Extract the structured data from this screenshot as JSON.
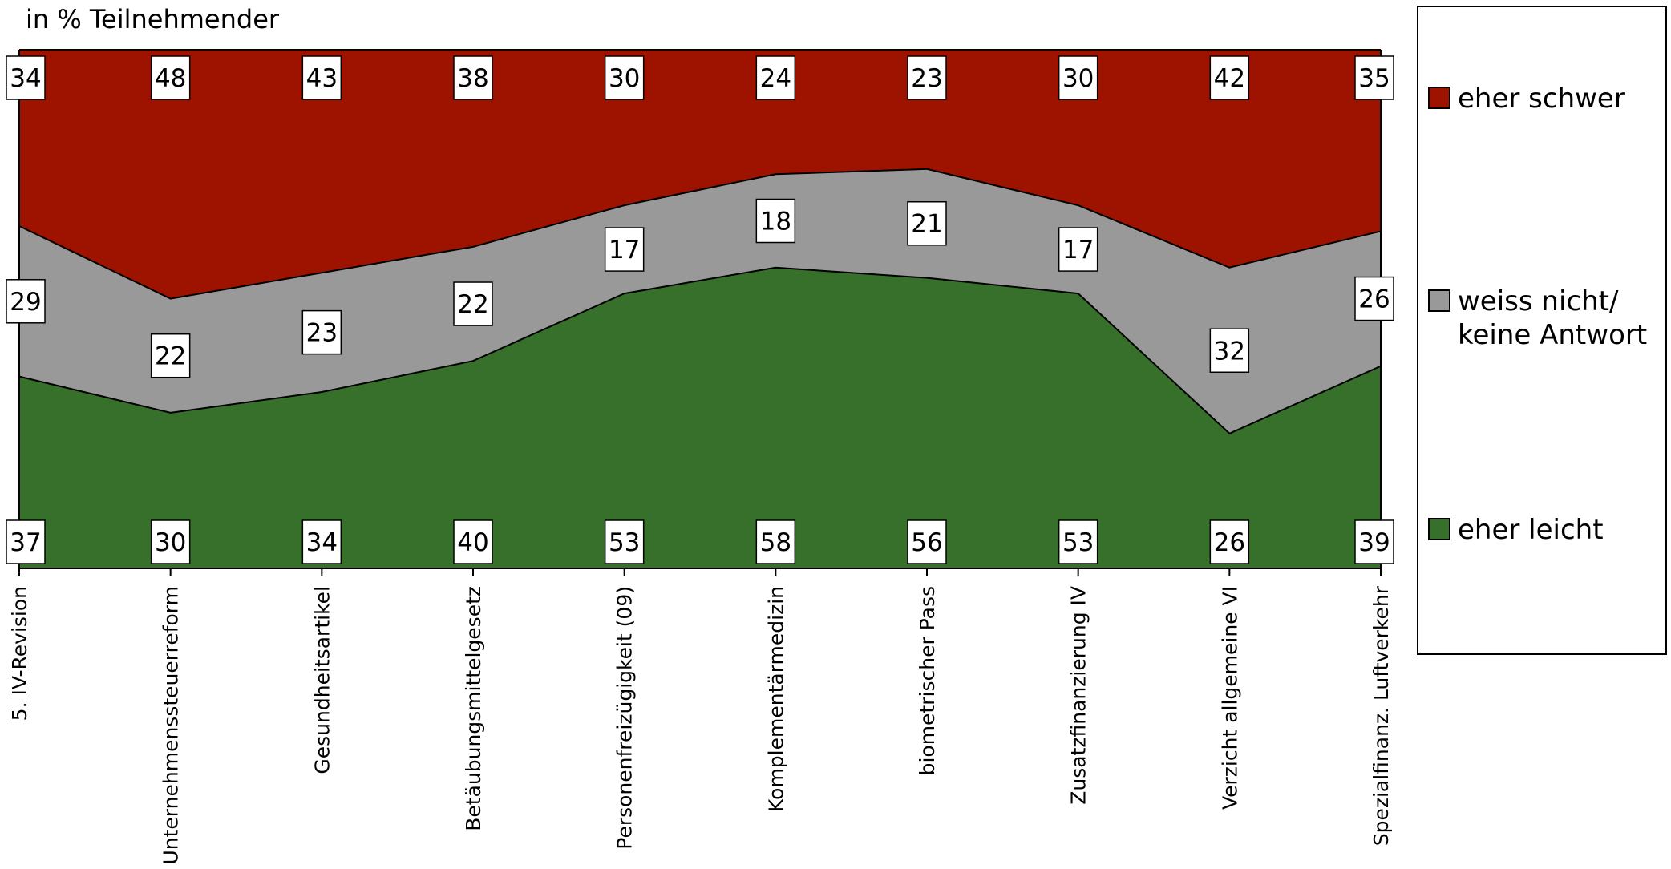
{
  "chart_data": {
    "type": "area",
    "stacked": "percent",
    "ylabel": "in % Teilnehmender",
    "categories": [
      "5. IV-Revision",
      "Unternehmenssteuerreform",
      "Gesundheitsartikel",
      "Betäubungsmittelgesetz",
      "Personenfreizügigkeit (09)",
      "Komplementärmedizin",
      "biometrischer Pass",
      "Zusatzfinanzierung IV",
      "Verzicht allgemeine VI",
      "Spezialfinanz. Luftverkehr"
    ],
    "series": [
      {
        "name": "eher leicht",
        "color": "#36702a",
        "values": [
          37,
          30,
          34,
          40,
          53,
          58,
          56,
          53,
          26,
          39
        ]
      },
      {
        "name": "weiss nicht/ keine Antwort",
        "color": "#999999",
        "values": [
          29,
          22,
          23,
          22,
          17,
          18,
          21,
          17,
          32,
          26
        ]
      },
      {
        "name": "eher schwer",
        "color": "#9e1200",
        "values": [
          34,
          48,
          43,
          38,
          30,
          24,
          23,
          30,
          42,
          35
        ]
      }
    ],
    "ylim": [
      0,
      100
    ],
    "grid": false,
    "legend": {
      "placement": "right",
      "entries": [
        {
          "line1": "eher schwer",
          "line2": "",
          "color": "#9e1200"
        },
        {
          "line1": "weiss nicht/",
          "line2": "keine Antwort",
          "color": "#999999"
        },
        {
          "line1": "eher leicht",
          "line2": "",
          "color": "#36702a"
        }
      ]
    }
  }
}
